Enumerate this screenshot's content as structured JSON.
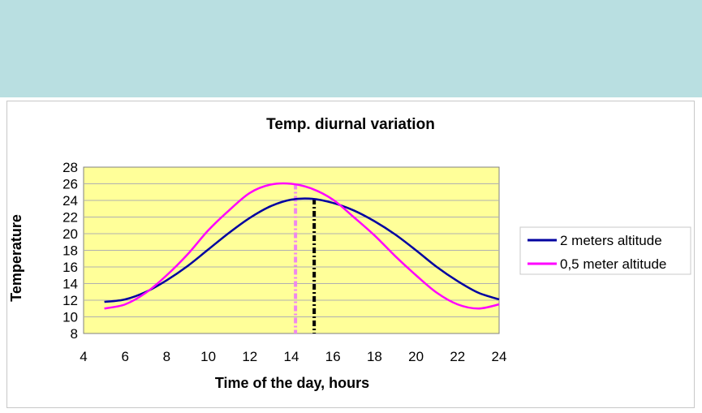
{
  "chart_data": {
    "type": "line",
    "title": "Temp. diurnal variation",
    "xlabel": "Time of the day, hours",
    "ylabel": "Temperature",
    "xlim": [
      4,
      24
    ],
    "ylim": [
      8,
      28
    ],
    "xticks": [
      "4",
      "6",
      "8",
      "10",
      "12",
      "14",
      "16",
      "18",
      "20",
      "22",
      "24"
    ],
    "yticks": [
      "8",
      "10",
      "12",
      "14",
      "16",
      "18",
      "20",
      "22",
      "24",
      "26",
      "28"
    ],
    "grid": true,
    "legend": "right",
    "plot_background": "#ffff99",
    "series": [
      {
        "name": "2 meters altitude",
        "color": "#0000a0",
        "x": [
          5,
          6,
          7,
          8,
          9,
          10,
          11,
          12,
          13,
          14,
          15,
          16,
          17,
          18,
          19,
          20,
          21,
          22,
          23,
          24
        ],
        "y": [
          11.8,
          12.1,
          13.0,
          14.4,
          16.1,
          18.1,
          20.1,
          21.9,
          23.3,
          24.1,
          24.2,
          23.7,
          22.8,
          21.5,
          19.9,
          18.0,
          16.0,
          14.3,
          12.9,
          12.1
        ]
      },
      {
        "name": "0,5 meter altitude",
        "color": "#ff00ff",
        "x": [
          5,
          6,
          7,
          8,
          9,
          10,
          11,
          12,
          13,
          14,
          15,
          16,
          17,
          18,
          19,
          20,
          21,
          22,
          23,
          24
        ],
        "y": [
          11.0,
          11.5,
          12.9,
          15.0,
          17.5,
          20.4,
          22.8,
          24.9,
          25.9,
          26.0,
          25.4,
          24.1,
          22.0,
          19.8,
          17.3,
          15.0,
          12.9,
          11.5,
          11.0,
          11.5
        ]
      }
    ],
    "annotations": [
      {
        "type": "vertical-dashed-line",
        "x": 14.2,
        "y_top": 26.0,
        "color": "#ee88ee"
      },
      {
        "type": "vertical-dashed-line",
        "x": 15.1,
        "y_top": 24.2,
        "color": "#000000"
      }
    ]
  }
}
